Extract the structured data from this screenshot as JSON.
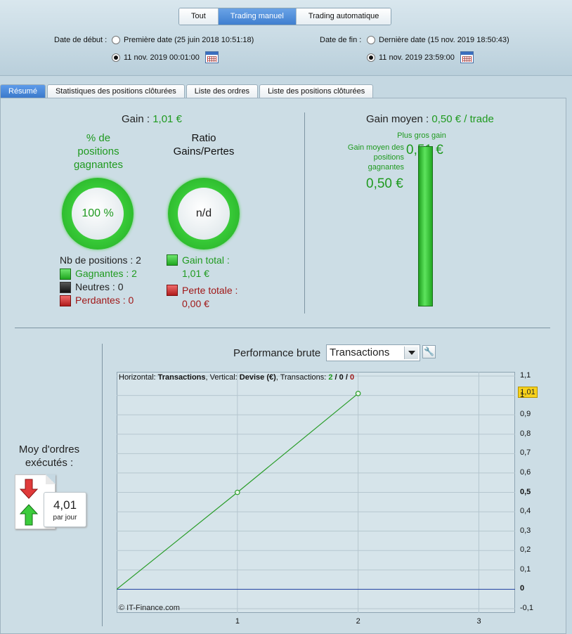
{
  "modes": [
    "Tout",
    "Trading manuel",
    "Trading automatique"
  ],
  "active_mode": "Trading manuel",
  "start": {
    "label": "Date de début :",
    "option_first": "Première date (25 juin 2018 10:51:18)",
    "option_custom": "11 nov. 2019 00:01:00",
    "selected": "custom"
  },
  "end": {
    "label": "Date de fin :",
    "option_last": "Dernière date (15 nov. 2019 18:50:43)",
    "option_custom": "11 nov. 2019 23:59:00",
    "selected": "custom"
  },
  "tabs": [
    "Résumé",
    "Statistiques des positions clôturées",
    "Liste des ordres",
    "Liste des positions clôturées"
  ],
  "active_tab": "Résumé",
  "summary": {
    "gain_label": "Gain :",
    "gain_value": "1,01 €",
    "win_pct_title": [
      "% de",
      "positions",
      "gagnantes"
    ],
    "win_pct_value": "100 %",
    "ratio_title": [
      "Ratio",
      "Gains/Pertes"
    ],
    "ratio_value": "n/d",
    "nb_positions": "Nb de positions : 2",
    "winning": "Gagnantes : 2",
    "neutral": "Neutres : 0",
    "losing": "Perdantes : 0",
    "total_gain_label": "Gain total :",
    "total_gain_value": "1,01 €",
    "total_loss_label": "Perte totale :",
    "total_loss_value": "0,00 €"
  },
  "avg_gain": {
    "label": "Gain moyen :",
    "value": "0,50 € / trade",
    "avg_winning_label": [
      "Gain moyen des",
      "positions",
      "gagnantes"
    ],
    "avg_winning_value": "0,50 €",
    "biggest_gain_label": "Plus gros gain",
    "biggest_gain_value": "0,51 €"
  },
  "orders": {
    "label": [
      "Moy d'ordres",
      "exécutés :"
    ],
    "value": "4,01",
    "unit": "par jour"
  },
  "performance": {
    "label": "Performance brute",
    "dropdown_value": "Transactions",
    "hint_prefix": "Horizontal: ",
    "hint_h": "Transactions",
    "hint_mid": ", Vertical: ",
    "hint_v": "Devise (€)",
    "hint_tx": ", Transactions: ",
    "tx_green": "2",
    "tx_sep1": " / ",
    "tx_black": "0",
    "tx_sep2": " / ",
    "tx_red": "0",
    "copyright": "© IT-Finance.com",
    "current_value": "1,01"
  },
  "chart_data": {
    "type": "line",
    "x": [
      0,
      1,
      2
    ],
    "series": [
      {
        "values": [
          0,
          0.5,
          1.01
        ]
      }
    ],
    "xlim": [
      0,
      3.3
    ],
    "ylim": [
      -0.1,
      1.1
    ],
    "x_ticks": [
      "1",
      "2",
      "3"
    ],
    "y_ticks": [
      "1,1",
      "1",
      "0,9",
      "0,8",
      "0,7",
      "0,6",
      "0,5",
      "0,4",
      "0,3",
      "0,2",
      "0,1",
      "0",
      "-0,1"
    ],
    "y_bold_ticks": [
      "0,5",
      "0"
    ],
    "grid": true,
    "colors": {
      "line": "#2a9d2a",
      "zero": "#1f3fa0"
    }
  }
}
